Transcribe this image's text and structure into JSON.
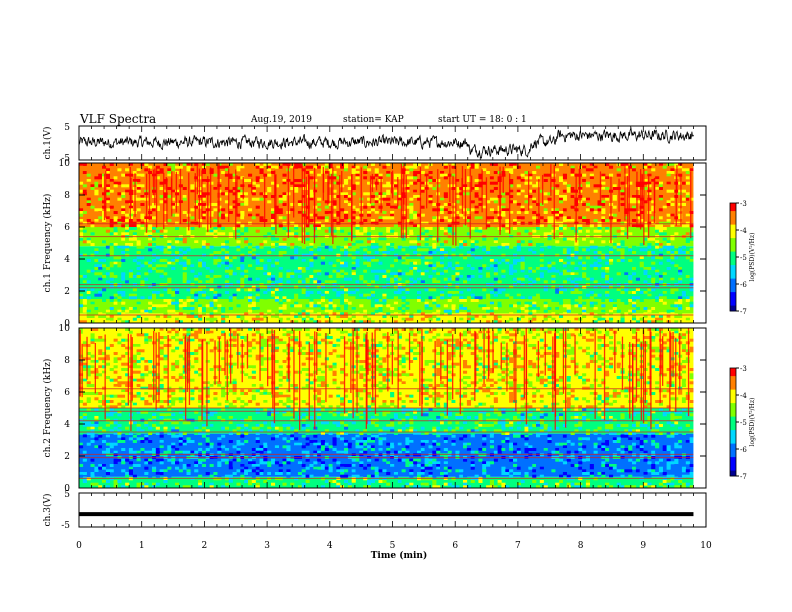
{
  "header": {
    "title": "VLF Spectra",
    "date": "Aug.19, 2019",
    "station": "station= KAP",
    "start_ut": "start  UT =   18: 0  : 1"
  },
  "colors": {
    "frame": "#000000",
    "trace": "#000000",
    "colormap": [
      "#000090",
      "#0000ff",
      "#0070ff",
      "#00d8ff",
      "#00ff80",
      "#80ff00",
      "#ffff00",
      "#ff8000",
      "#ff0000",
      "#ffffff"
    ]
  },
  "chart_data": [
    {
      "type": "line",
      "name": "ch1-waveform",
      "ylabel": "ch.1(V)",
      "ylim": [
        -5,
        5
      ],
      "yticks": [
        "5",
        "-5"
      ],
      "x_range": [
        0,
        9.8
      ],
      "note_values": "waveform amplitude between about -3.5 and 4.5 V, higher toward minute 8-9.7"
    },
    {
      "type": "heatmap",
      "name": "ch1-spectrogram",
      "ylabel": "ch.1  Frequency  (kHz)",
      "ylim": [
        0,
        10
      ],
      "yticks": [
        "0",
        "2",
        "4",
        "6",
        "8",
        "10"
      ],
      "x_range": [
        0,
        9.8
      ],
      "bands": [
        {
          "from": 0,
          "to": 0.6,
          "level": -4.2
        },
        {
          "from": 0.6,
          "to": 1.5,
          "level": -4.6
        },
        {
          "from": 1.5,
          "to": 4.8,
          "level": -5.0
        },
        {
          "from": 4.8,
          "to": 6.0,
          "level": -4.4
        },
        {
          "from": 6.0,
          "to": 10,
          "level": -3.6
        }
      ],
      "lines_khz": [
        0.5,
        2.2,
        2.4,
        4.2,
        5.4,
        6.2
      ],
      "colorbar": {
        "label": "log(PSD)(V²/Hz)",
        "ticks": [
          "-3",
          "-4",
          "-5",
          "-6",
          "-7"
        ],
        "range": [
          -7,
          -3
        ]
      }
    },
    {
      "type": "heatmap",
      "name": "ch2-spectrogram",
      "ylabel": "ch.2  Frequency  (kHz)",
      "ylim": [
        0,
        10
      ],
      "yticks": [
        "0",
        "2",
        "4",
        "6",
        "8",
        "10"
      ],
      "x_range": [
        0,
        9.8
      ],
      "bands": [
        {
          "from": 0,
          "to": 0.7,
          "level": -4.8
        },
        {
          "from": 0.7,
          "to": 3.4,
          "level": -5.8
        },
        {
          "from": 3.4,
          "to": 5.0,
          "level": -5.0
        },
        {
          "from": 5.0,
          "to": 10,
          "level": -4.1
        }
      ],
      "lines_khz": [
        0.6,
        1.9,
        2.1,
        3.5,
        4.2,
        4.8,
        5.0,
        6.2
      ],
      "colorbar": {
        "label": "log(PSD)(V²/Hz)",
        "ticks": [
          "-3",
          "-4",
          "-5",
          "-6",
          "-7"
        ],
        "range": [
          -7,
          -3
        ]
      }
    },
    {
      "type": "line",
      "name": "ch3-waveform",
      "ylabel": "ch.3(V)",
      "ylim": [
        -5,
        5
      ],
      "yticks": [
        "5",
        "-5"
      ],
      "x_range": [
        0,
        9.8
      ],
      "value": -1.2,
      "xlabel": "Time  (min)",
      "xlim": [
        0,
        10
      ],
      "xticks": [
        "0",
        "1",
        "2",
        "3",
        "4",
        "5",
        "6",
        "7",
        "8",
        "9",
        "10"
      ]
    }
  ]
}
